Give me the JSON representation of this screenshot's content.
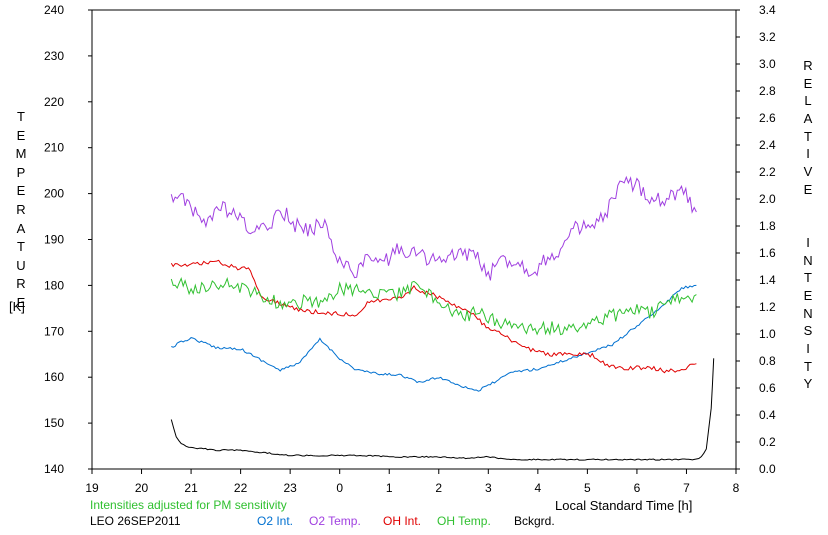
{
  "chart_data": {
    "type": "line",
    "left_axis": {
      "label": "TEMPERATURE",
      "unit": "[K]",
      "range": [
        140,
        240
      ],
      "ticks": [
        "140",
        "150",
        "160",
        "170",
        "180",
        "190",
        "200",
        "210",
        "220",
        "230",
        "240"
      ]
    },
    "right_axis": {
      "label": "RELATIVE INTENSITY",
      "range": [
        0.0,
        3.4
      ],
      "ticks": [
        "0.0",
        "0.2",
        "0.4",
        "0.6",
        "0.8",
        "1.0",
        "1.2",
        "1.4",
        "1.6",
        "1.8",
        "2.0",
        "2.2",
        "2.4",
        "2.6",
        "2.8",
        "3.0",
        "3.2",
        "3.4"
      ]
    },
    "x_axis": {
      "label": "Local Standard Time [h]",
      "range": [
        19,
        32
      ],
      "ticks": [
        "19",
        "20",
        "21",
        "22",
        "23",
        "0",
        "1",
        "2",
        "3",
        "4",
        "5",
        "6",
        "7",
        "8"
      ]
    },
    "note": "Intensities adjusted for PM sensitivity",
    "station": "LEO 26SEP2011",
    "grid": false,
    "series": [
      {
        "name": "O2 Int.",
        "color": "#0070d0",
        "axis": "right",
        "x": [
          20.6,
          20.8,
          21.0,
          21.5,
          22.0,
          22.5,
          22.8,
          23.2,
          23.6,
          24.0,
          24.3,
          24.8,
          25.2,
          25.6,
          26.0,
          26.5,
          26.8,
          27.0,
          27.5,
          28.0,
          28.5,
          29.0,
          29.5,
          30.0,
          30.5,
          30.9,
          31.2
        ],
        "values": [
          0.9,
          0.94,
          0.97,
          0.9,
          0.89,
          0.79,
          0.73,
          0.79,
          0.96,
          0.82,
          0.74,
          0.7,
          0.7,
          0.64,
          0.68,
          0.61,
          0.58,
          0.62,
          0.72,
          0.74,
          0.8,
          0.86,
          0.92,
          1.06,
          1.2,
          1.34,
          1.36
        ]
      },
      {
        "name": "O2 Temp.",
        "color": "#a040e0",
        "axis": "left",
        "x": [
          20.6,
          20.8,
          21.0,
          21.3,
          21.6,
          21.9,
          22.2,
          22.5,
          22.8,
          23.1,
          23.4,
          23.7,
          24.0,
          24.3,
          24.6,
          24.9,
          25.2,
          25.5,
          25.8,
          26.1,
          26.4,
          26.7,
          27.0,
          27.3,
          27.6,
          27.9,
          28.2,
          28.5,
          28.8,
          29.1,
          29.4,
          29.7,
          30.0,
          30.3,
          30.6,
          30.9,
          31.2
        ],
        "values": [
          200,
          199,
          196,
          194,
          197,
          195,
          192,
          192,
          197,
          193,
          192,
          194,
          185,
          183,
          186,
          185,
          188,
          187,
          186,
          185,
          187,
          187,
          182,
          186,
          185,
          183,
          186,
          188,
          193,
          192,
          196,
          202,
          202,
          199,
          199,
          201,
          196
        ]
      },
      {
        "name": "OH Int.",
        "color": "#e00000",
        "axis": "right",
        "x": [
          20.6,
          20.8,
          21.0,
          21.3,
          21.6,
          21.9,
          22.2,
          22.4,
          22.7,
          23.0,
          23.3,
          23.6,
          24.0,
          24.3,
          24.6,
          24.9,
          25.2,
          25.5,
          25.8,
          26.1,
          26.4,
          26.7,
          27.0,
          27.3,
          27.6,
          27.9,
          28.2,
          28.5,
          28.8,
          29.1,
          29.4,
          29.7,
          30.0,
          30.3,
          30.6,
          30.9,
          31.2
        ],
        "values": [
          1.52,
          1.5,
          1.52,
          1.53,
          1.53,
          1.49,
          1.48,
          1.28,
          1.24,
          1.2,
          1.17,
          1.16,
          1.15,
          1.14,
          1.24,
          1.25,
          1.27,
          1.34,
          1.3,
          1.26,
          1.2,
          1.14,
          1.04,
          0.99,
          0.92,
          0.88,
          0.85,
          0.85,
          0.85,
          0.84,
          0.77,
          0.74,
          0.75,
          0.75,
          0.72,
          0.74,
          0.78
        ]
      },
      {
        "name": "OH Temp.",
        "color": "#30c030",
        "axis": "left",
        "x": [
          20.6,
          20.8,
          21.0,
          21.3,
          21.6,
          21.9,
          22.2,
          22.5,
          22.8,
          23.1,
          23.4,
          23.7,
          24.0,
          24.3,
          24.6,
          24.9,
          25.2,
          25.5,
          25.8,
          26.1,
          26.4,
          26.7,
          27.0,
          27.3,
          27.6,
          27.9,
          28.2,
          28.5,
          28.8,
          29.1,
          29.4,
          29.7,
          30.0,
          30.3,
          30.6,
          30.9,
          31.2
        ],
        "values": [
          181,
          180,
          179,
          180,
          180,
          180,
          179,
          177,
          176,
          176,
          177,
          176,
          179,
          179,
          178,
          179,
          178,
          180,
          178,
          176,
          173,
          174,
          173,
          172,
          171,
          170,
          171,
          170,
          171,
          172,
          173,
          174,
          175,
          174,
          176,
          177,
          178
        ]
      },
      {
        "name": "Bckgrd.",
        "color": "#000000",
        "axis": "right",
        "x": [
          20.6,
          20.7,
          20.8,
          20.9,
          21.0,
          21.5,
          22.0,
          22.5,
          23.0,
          23.5,
          24.0,
          24.5,
          25.0,
          25.5,
          26.0,
          26.5,
          27.0,
          27.5,
          28.0,
          28.5,
          29.0,
          29.5,
          30.0,
          30.5,
          31.0,
          31.2,
          31.3,
          31.4,
          31.5,
          31.55
        ],
        "values": [
          0.37,
          0.24,
          0.19,
          0.17,
          0.16,
          0.14,
          0.14,
          0.12,
          0.1,
          0.1,
          0.1,
          0.1,
          0.09,
          0.09,
          0.09,
          0.08,
          0.09,
          0.07,
          0.07,
          0.07,
          0.07,
          0.07,
          0.07,
          0.07,
          0.07,
          0.07,
          0.09,
          0.15,
          0.45,
          0.82
        ]
      }
    ]
  }
}
